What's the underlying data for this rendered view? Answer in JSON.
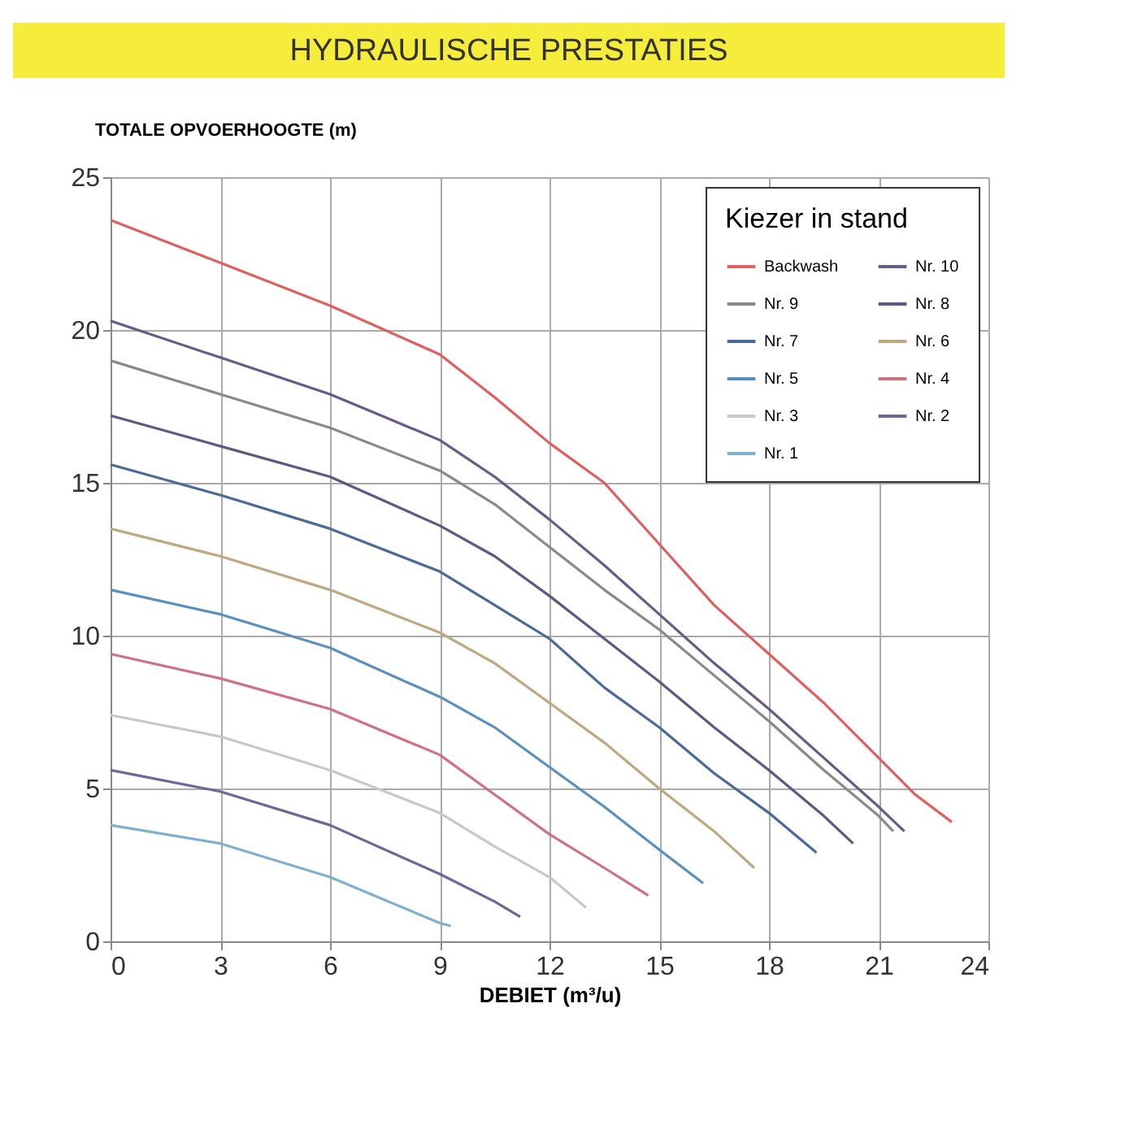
{
  "chart_data": {
    "type": "line",
    "title": "HYDRAULISCHE PRESTATIES",
    "xlabel": "DEBIET (m³/u)",
    "ylabel": "TOTALE OPVOERHOOGTE (m)",
    "legend_title": "Kiezer in stand",
    "legend": "top right",
    "grid": true,
    "marker": "none",
    "line_style": "solid",
    "xlim": [
      0,
      24
    ],
    "xticks": [
      0,
      3,
      6,
      9,
      12,
      15,
      18,
      21,
      24
    ],
    "ylim": [
      0,
      25
    ],
    "yticks": [
      0,
      5,
      10,
      15,
      20,
      25
    ],
    "series": [
      {
        "name": "Backwash",
        "color": "#e06060",
        "x": [
          0,
          3,
          6,
          9,
          10.5,
          12,
          13.5,
          15,
          16.5,
          18,
          19.5,
          21,
          22,
          23
        ],
        "values": [
          23.6,
          22.2,
          20.8,
          19.2,
          17.8,
          16.3,
          15,
          13,
          11,
          9.4,
          7.8,
          6,
          4.8,
          3.9
        ]
      },
      {
        "name": "Nr. 10",
        "color": "#6a5a8a",
        "x": [
          0,
          3,
          6,
          9,
          10.5,
          12,
          13.5,
          15,
          16.5,
          18,
          19.5,
          21,
          21.7
        ],
        "values": [
          20.3,
          19.1,
          17.9,
          16.4,
          15.2,
          13.8,
          12.3,
          10.7,
          9.1,
          7.6,
          6,
          4.4,
          3.6
        ]
      },
      {
        "name": "Nr. 9",
        "color": "#8a8a8a",
        "x": [
          0,
          3,
          6,
          9,
          10.5,
          12,
          13.5,
          15,
          16.5,
          18,
          19.5,
          21,
          21.4
        ],
        "values": [
          19,
          17.9,
          16.8,
          15.4,
          14.3,
          12.9,
          11.5,
          10.2,
          8.7,
          7.2,
          5.6,
          4.1,
          3.6
        ]
      },
      {
        "name": "Nr. 8",
        "color": "#5a5a85",
        "x": [
          0,
          3,
          6,
          9,
          10.5,
          12,
          13.5,
          15,
          16.5,
          18,
          19.5,
          20.3
        ],
        "values": [
          17.2,
          16.2,
          15.2,
          13.6,
          12.6,
          11.3,
          9.9,
          8.5,
          7,
          5.6,
          4.1,
          3.2
        ]
      },
      {
        "name": "Nr. 7",
        "color": "#4a6a9a",
        "x": [
          0,
          3,
          6,
          9,
          10.5,
          12,
          13.5,
          15,
          16.5,
          18,
          19.3
        ],
        "values": [
          15.6,
          14.6,
          13.5,
          12.1,
          11,
          9.9,
          8.3,
          7,
          5.5,
          4.2,
          2.9
        ]
      },
      {
        "name": "Nr. 6",
        "color": "#c0a880",
        "x": [
          0,
          3,
          6,
          9,
          10.5,
          12,
          13.5,
          15,
          16.5,
          17.6
        ],
        "values": [
          13.5,
          12.6,
          11.5,
          10.1,
          9.1,
          7.8,
          6.5,
          5,
          3.6,
          2.4
        ]
      },
      {
        "name": "Nr. 5",
        "color": "#5a90c0",
        "x": [
          0,
          3,
          6,
          9,
          10.5,
          12,
          13.5,
          15,
          16.2
        ],
        "values": [
          11.5,
          10.7,
          9.6,
          8,
          7,
          5.7,
          4.4,
          3,
          1.9
        ]
      },
      {
        "name": "Nr. 4",
        "color": "#d07080",
        "x": [
          0,
          3,
          6,
          9,
          10.5,
          12,
          13.5,
          14.7
        ],
        "values": [
          9.4,
          8.6,
          7.6,
          6.1,
          4.8,
          3.5,
          2.4,
          1.5
        ]
      },
      {
        "name": "Nr. 3",
        "color": "#c8c8c8",
        "x": [
          0,
          3,
          6,
          9,
          10.5,
          12,
          13
        ],
        "values": [
          7.4,
          6.7,
          5.6,
          4.2,
          3.1,
          2.1,
          1.1
        ]
      },
      {
        "name": "Nr. 2",
        "color": "#6a6a9a",
        "x": [
          0,
          3,
          6,
          9,
          10.5,
          11.2
        ],
        "values": [
          5.6,
          4.9,
          3.8,
          2.2,
          1.3,
          0.8
        ]
      },
      {
        "name": "Nr. 1",
        "color": "#80b0d0",
        "x": [
          0,
          3,
          6,
          9,
          9.3
        ],
        "values": [
          3.8,
          3.2,
          2.1,
          0.6,
          0.5
        ]
      }
    ]
  }
}
